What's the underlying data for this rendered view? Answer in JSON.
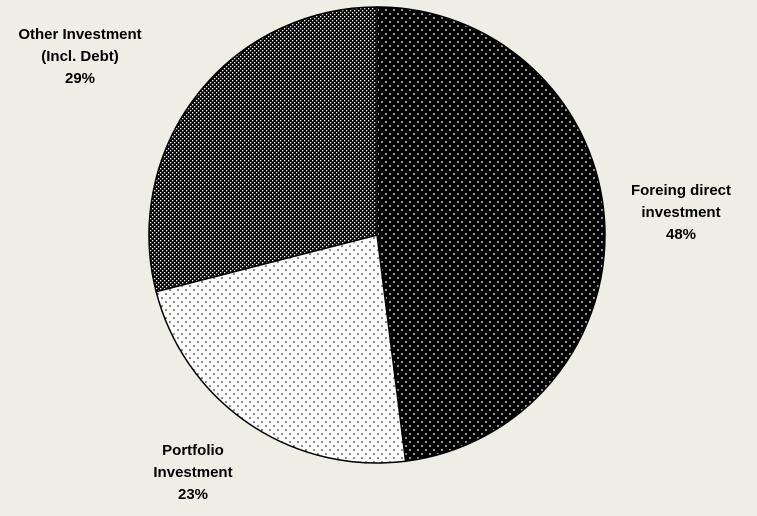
{
  "chart_data": {
    "type": "pie",
    "title": "",
    "slices": [
      {
        "label_lines": [
          "Foreing direct",
          "investment"
        ],
        "value": 48,
        "value_label": "48%",
        "pattern": "dense-dots-on-black"
      },
      {
        "label_lines": [
          "Portfolio",
          "Investment"
        ],
        "value": 23,
        "value_label": "23%",
        "pattern": "sparse-dots-on-white"
      },
      {
        "label_lines": [
          "Other Investment",
          "(Incl. Debt)"
        ],
        "value": 29,
        "value_label": "29%",
        "pattern": "checker-dots"
      }
    ],
    "legend": "none"
  }
}
